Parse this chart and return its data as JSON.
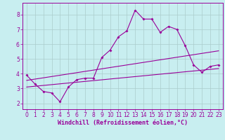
{
  "title": "",
  "xlabel": "Windchill (Refroidissement éolien,°C)",
  "ylabel": "",
  "bg_color": "#c8eef0",
  "line_color": "#990099",
  "grid_color": "#aacccc",
  "x_ticks": [
    0,
    1,
    2,
    3,
    4,
    5,
    6,
    7,
    8,
    9,
    10,
    11,
    12,
    13,
    14,
    15,
    16,
    17,
    18,
    19,
    20,
    21,
    22,
    23
  ],
  "y_ticks": [
    2,
    3,
    4,
    5,
    6,
    7,
    8
  ],
  "xlim": [
    -0.5,
    23.5
  ],
  "ylim": [
    1.6,
    8.8
  ],
  "series1": [
    3.9,
    3.3,
    2.8,
    2.7,
    2.1,
    3.1,
    3.6,
    3.7,
    3.7,
    5.1,
    5.6,
    6.5,
    6.9,
    8.3,
    7.7,
    7.7,
    6.8,
    7.2,
    7.0,
    5.9,
    4.6,
    4.1,
    4.5,
    4.6
  ],
  "series2_x": [
    0,
    23
  ],
  "series2_y": [
    3.55,
    5.55
  ],
  "series3_x": [
    0,
    23
  ],
  "series3_y": [
    3.1,
    4.35
  ],
  "font_size_tick": 5.5,
  "font_size_label": 6.0
}
